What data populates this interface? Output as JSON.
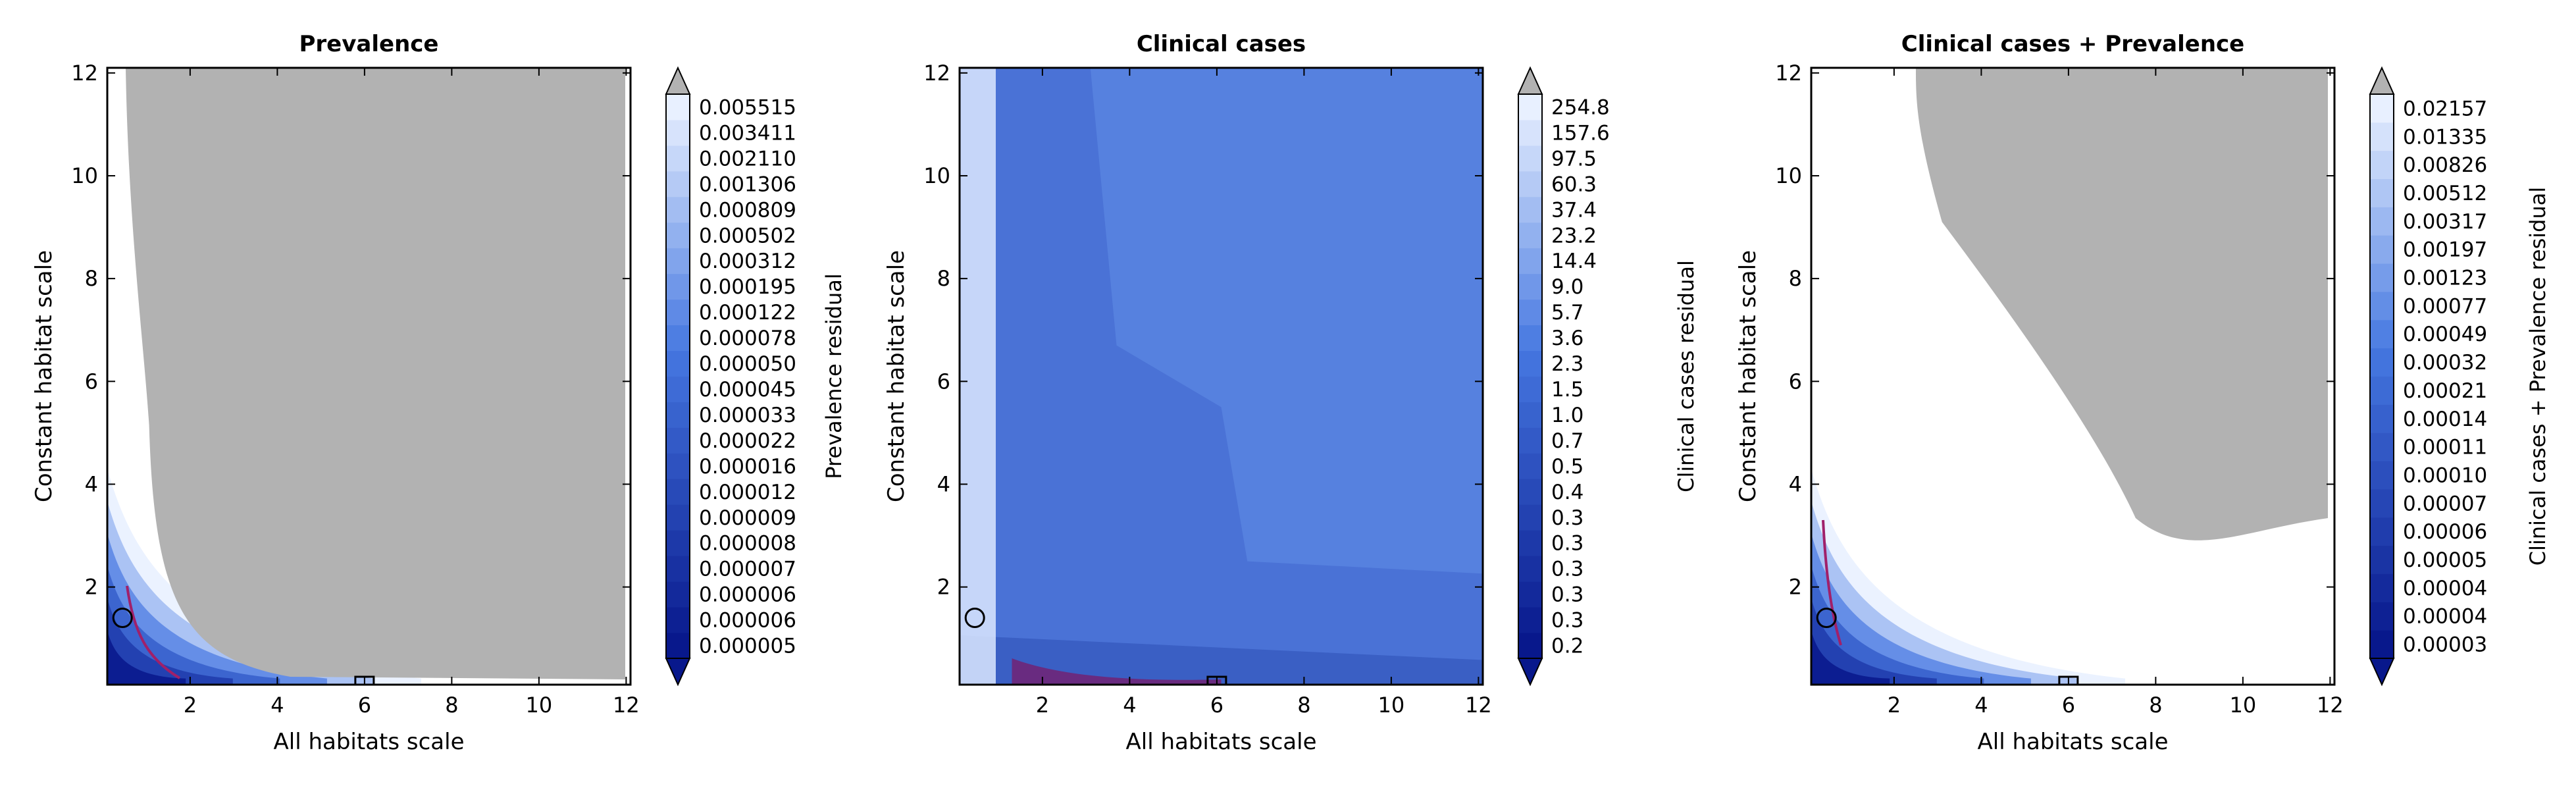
{
  "chart_data": [
    {
      "type": "heatmap",
      "title": "Prevalence",
      "xlabel": "All habitats scale",
      "ylabel": "Constant habitat scale",
      "xlim": [
        0.1,
        12.1
      ],
      "ylim": [
        0.1,
        12.1
      ],
      "xticks": [
        2,
        4,
        6,
        8,
        10,
        12
      ],
      "yticks": [
        2,
        4,
        6,
        8,
        10,
        12
      ],
      "colorbar_label": "Prevalence residual",
      "colorbar_levels": [
        "0.005515",
        "0.003411",
        "0.002110",
        "0.001306",
        "0.000809",
        "0.000502",
        "0.000312",
        "0.000195",
        "0.000122",
        "0.000078",
        "0.000050",
        "0.000045",
        "0.000033",
        "0.000022",
        "0.000016",
        "0.000012",
        "0.000009",
        "0.000008",
        "0.000007",
        "0.000006",
        "0.000006",
        "0.000005"
      ],
      "masked_color": "#b2b2b2",
      "circle_marker": [
        0.45,
        1.4
      ],
      "square_marker": [
        6.0,
        0.1
      ]
    },
    {
      "type": "heatmap",
      "title": "Clinical cases",
      "xlabel": "All habitats scale",
      "ylabel": "Constant habitat scale",
      "xlim": [
        0.1,
        12.1
      ],
      "ylim": [
        0.1,
        12.1
      ],
      "xticks": [
        2,
        4,
        6,
        8,
        10,
        12
      ],
      "yticks": [
        2,
        4,
        6,
        8,
        10,
        12
      ],
      "colorbar_label": "Clinical cases residual",
      "colorbar_levels": [
        "254.8",
        "157.6",
        "97.5",
        "60.3",
        "37.4",
        "23.2",
        "14.4",
        "9.0",
        "5.7",
        "3.6",
        "2.3",
        "1.5",
        "1.0",
        "0.7",
        "0.5",
        "0.4",
        "0.3",
        "0.3",
        "0.3",
        "0.3",
        "0.3",
        "0.2"
      ],
      "masked_color": "#b2b2b2",
      "circle_marker": [
        0.45,
        1.4
      ],
      "square_marker": [
        6.0,
        0.1
      ]
    },
    {
      "type": "heatmap",
      "title": "Clinical cases + Prevalence",
      "xlabel": "All habitats scale",
      "ylabel": "Constant habitat scale",
      "xlim": [
        0.1,
        12.1
      ],
      "ylim": [
        0.1,
        12.1
      ],
      "xticks": [
        2,
        4,
        6,
        8,
        10,
        12
      ],
      "yticks": [
        2,
        4,
        6,
        8,
        10,
        12
      ],
      "colorbar_label": "Clinical cases + Prevalence residual",
      "colorbar_levels": [
        "0.02157",
        "0.01335",
        "0.00826",
        "0.00512",
        "0.00317",
        "0.00197",
        "0.00123",
        "0.00077",
        "0.00049",
        "0.00032",
        "0.00021",
        "0.00014",
        "0.00011",
        "0.00010",
        "0.00007",
        "0.00006",
        "0.00005",
        "0.00004",
        "0.00004",
        "0.00003"
      ],
      "masked_color": "#b2b2b2",
      "circle_marker": [
        0.45,
        1.4
      ],
      "square_marker": [
        6.0,
        0.1
      ]
    }
  ]
}
